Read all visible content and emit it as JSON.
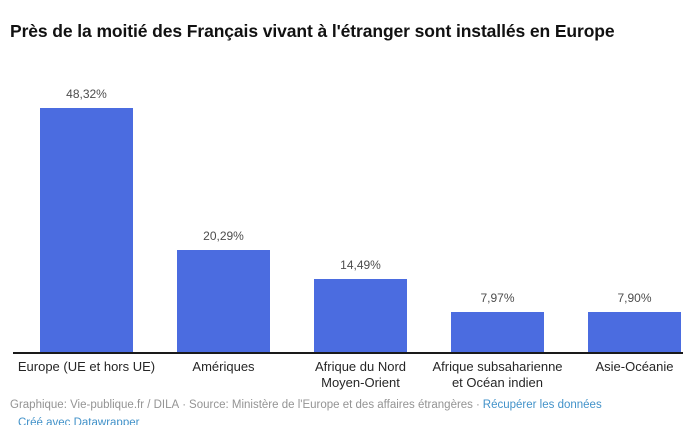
{
  "title": "Près de la moitié des Français vivant à l'étranger sont installés en Europe",
  "chart_data": {
    "type": "bar",
    "title": "Près de la moitié des Français vivant à l'étranger sont installés en Europe",
    "categories": [
      "Europe (UE et hors UE)",
      "Amériques",
      "Afrique du Nord Moyen-Orient",
      "Afrique subsaharienne et Océan indien",
      "Asie-Océanie"
    ],
    "category_lines": [
      [
        "Europe (UE et hors UE)"
      ],
      [
        "Amériques"
      ],
      [
        "Afrique du Nord",
        "Moyen-Orient"
      ],
      [
        "Afrique subsaharienne",
        "et Océan indien"
      ],
      [
        "Asie-Océanie"
      ]
    ],
    "values": [
      48.32,
      20.29,
      14.49,
      7.97,
      7.9
    ],
    "value_labels": [
      "48,32%",
      "20,29%",
      "14,49%",
      "7,97%",
      "7,90%"
    ],
    "xlabel": "",
    "ylabel": "",
    "ylim": [
      0,
      50
    ],
    "grid": false,
    "legend": "none",
    "bar_color": "#4b6ce0"
  },
  "footer": {
    "credit": "Graphique: Vie-publique.fr / DILA",
    "separator": "·",
    "source": "Source: Ministère de l'Europe et des affaires étrangères",
    "download_link": "Récupérer les données",
    "attribution_link": "Créé avec Datawrapper"
  },
  "colors": {
    "bar": "#4b6ce0",
    "title": "#111111",
    "value_label": "#4d4d4d",
    "category_label": "#262626",
    "axis": "#1a1a1a",
    "footer_text": "#949494",
    "link": "#4292c9",
    "background": "#ffffff"
  }
}
